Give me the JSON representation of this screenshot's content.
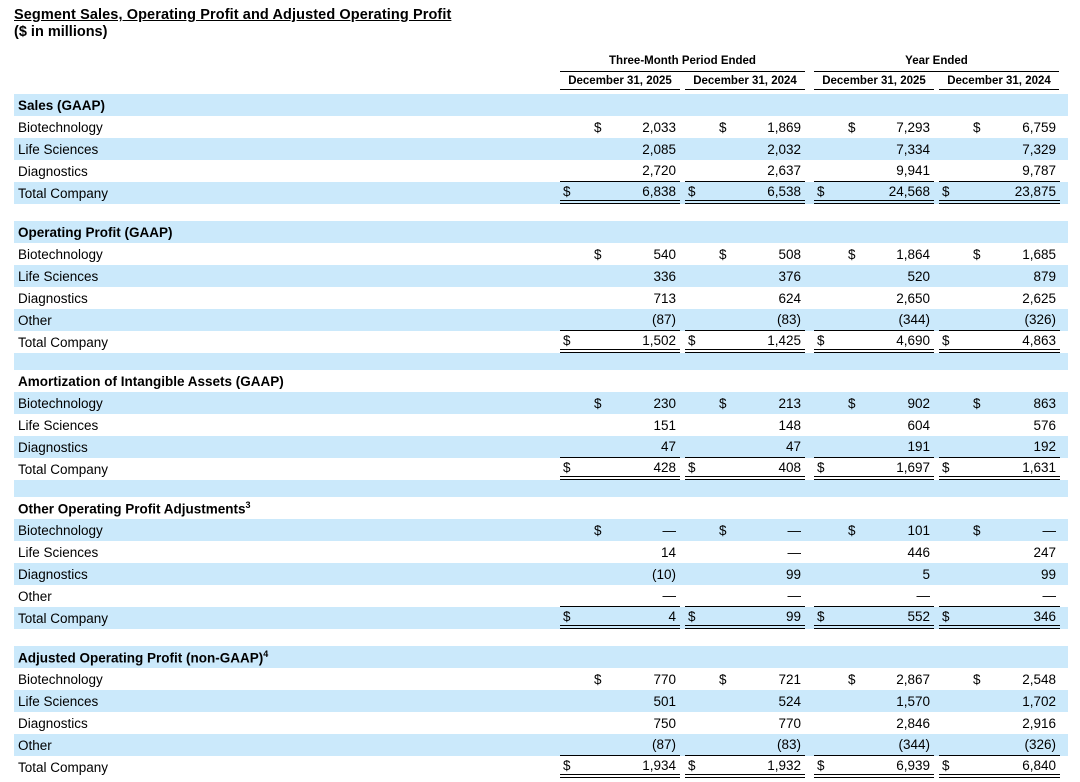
{
  "title": "Segment Sales, Operating Profit and Adjusted Operating Profit",
  "subtitle": "($ in millions)",
  "currency_symbol": "$",
  "colors": {
    "row_highlight": "#cbe9fb"
  },
  "columns": {
    "group_headers": [
      "Three-Month Period Ended",
      "Year Ended"
    ],
    "subheaders": [
      "December 31, 2025",
      "December 31, 2024",
      "December 31, 2025",
      "December 31, 2024"
    ]
  },
  "sections": [
    {
      "header": "Sales (GAAP)",
      "sup": "",
      "rows": [
        {
          "label": "Biotechnology",
          "dollar": true,
          "values": [
            "2,033",
            "1,869",
            "7,293",
            "6,759"
          ]
        },
        {
          "label": "Life Sciences",
          "values": [
            "2,085",
            "2,032",
            "7,334",
            "7,329"
          ]
        },
        {
          "label": "Diagnostics",
          "underline": true,
          "values": [
            "2,720",
            "2,637",
            "9,941",
            "9,787"
          ]
        },
        {
          "label": "Total Company",
          "dollar": true,
          "total": true,
          "values": [
            "6,838",
            "6,538",
            "24,568",
            "23,875"
          ]
        }
      ]
    },
    {
      "header": "Operating Profit (GAAP)",
      "sup": "",
      "rows": [
        {
          "label": "Biotechnology",
          "dollar": true,
          "values": [
            "540",
            "508",
            "1,864",
            "1,685"
          ]
        },
        {
          "label": "Life Sciences",
          "values": [
            "336",
            "376",
            "520",
            "879"
          ]
        },
        {
          "label": "Diagnostics",
          "values": [
            "713",
            "624",
            "2,650",
            "2,625"
          ]
        },
        {
          "label": "Other",
          "underline": true,
          "values": [
            "(87)",
            "(83)",
            "(344)",
            "(326)"
          ]
        },
        {
          "label": "Total Company",
          "dollar": true,
          "total": true,
          "values": [
            "1,502",
            "1,425",
            "4,690",
            "4,863"
          ]
        }
      ]
    },
    {
      "header": "Amortization of Intangible Assets (GAAP)",
      "sup": "",
      "rows": [
        {
          "label": "Biotechnology",
          "dollar": true,
          "values": [
            "230",
            "213",
            "902",
            "863"
          ]
        },
        {
          "label": "Life Sciences",
          "values": [
            "151",
            "148",
            "604",
            "576"
          ]
        },
        {
          "label": "Diagnostics",
          "underline": true,
          "values": [
            "47",
            "47",
            "191",
            "192"
          ]
        },
        {
          "label": "Total Company",
          "dollar": true,
          "total": true,
          "values": [
            "428",
            "408",
            "1,697",
            "1,631"
          ]
        }
      ]
    },
    {
      "header": "Other Operating Profit Adjustments",
      "sup": "3",
      "rows": [
        {
          "label": "Biotechnology",
          "dollar": true,
          "values": [
            "—",
            "—",
            "101",
            "—"
          ]
        },
        {
          "label": "Life Sciences",
          "values": [
            "14",
            "—",
            "446",
            "247"
          ]
        },
        {
          "label": "Diagnostics",
          "values": [
            "(10)",
            "99",
            "5",
            "99"
          ]
        },
        {
          "label": "Other",
          "underline": true,
          "values": [
            "—",
            "—",
            "—",
            "—"
          ]
        },
        {
          "label": "Total Company",
          "dollar": true,
          "total": true,
          "values": [
            "4",
            "99",
            "552",
            "346"
          ]
        }
      ]
    },
    {
      "header": "Adjusted Operating Profit (non-GAAP)",
      "sup": "4",
      "rows": [
        {
          "label": "Biotechnology",
          "dollar": true,
          "values": [
            "770",
            "721",
            "2,867",
            "2,548"
          ]
        },
        {
          "label": "Life Sciences",
          "values": [
            "501",
            "524",
            "1,570",
            "1,702"
          ]
        },
        {
          "label": "Diagnostics",
          "values": [
            "750",
            "770",
            "2,846",
            "2,916"
          ]
        },
        {
          "label": "Other",
          "underline": true,
          "values": [
            "(87)",
            "(83)",
            "(344)",
            "(326)"
          ]
        },
        {
          "label": "Total Company",
          "dollar": true,
          "total": true,
          "values": [
            "1,934",
            "1,932",
            "6,939",
            "6,840"
          ]
        }
      ]
    }
  ]
}
